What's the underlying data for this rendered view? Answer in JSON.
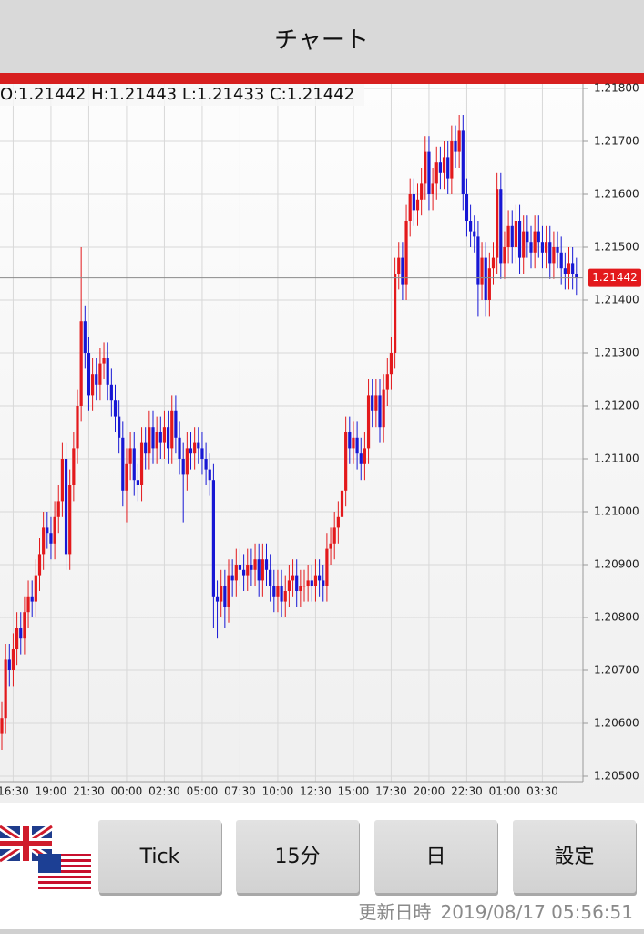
{
  "header": {
    "title": "チャート"
  },
  "buttons": [
    "Tick",
    "15分",
    "日",
    "設定"
  ],
  "footer": {
    "label": "更新日時",
    "timestamp": "2019/08/17 05:56:51"
  },
  "chart_data": {
    "type": "candlestick",
    "info": "O:1.21442 H:1.21443 L:1.21433 C:1.21442",
    "up_color": "#e3191c",
    "down_color": "#1717d4",
    "grid": true,
    "last_price": {
      "value": 1.21442,
      "label": "1.21442"
    },
    "ylim": [
      1.205,
      1.218
    ],
    "yticks": [
      {
        "value": 1.218,
        "label": "1.21800"
      },
      {
        "value": 1.217,
        "label": "1.21700"
      },
      {
        "value": 1.216,
        "label": "1.21600"
      },
      {
        "value": 1.215,
        "label": "1.21500"
      },
      {
        "value": 1.214,
        "label": "1.21400"
      },
      {
        "value": 1.213,
        "label": "1.21300"
      },
      {
        "value": 1.212,
        "label": "1.21200"
      },
      {
        "value": 1.211,
        "label": "1.21100"
      },
      {
        "value": 1.21,
        "label": "1.21000"
      },
      {
        "value": 1.209,
        "label": "1.20900"
      },
      {
        "value": 1.208,
        "label": "1.20800"
      },
      {
        "value": 1.207,
        "label": "1.20700"
      },
      {
        "value": 1.206,
        "label": "1.20600"
      },
      {
        "value": 1.205,
        "label": "1.20500"
      }
    ],
    "xticks": [
      {
        "value": 3,
        "label": "16:30"
      },
      {
        "value": 13,
        "label": "19:00"
      },
      {
        "value": 23,
        "label": "21:30"
      },
      {
        "value": 33,
        "label": "00:00"
      },
      {
        "value": 43,
        "label": "02:30"
      },
      {
        "value": 53,
        "label": "05:00"
      },
      {
        "value": 63,
        "label": "07:30"
      },
      {
        "value": 73,
        "label": "10:00"
      },
      {
        "value": 83,
        "label": "12:30"
      },
      {
        "value": 93,
        "label": "15:00"
      },
      {
        "value": 103,
        "label": "17:30"
      },
      {
        "value": 113,
        "label": "20:00"
      },
      {
        "value": 123,
        "label": "22:30"
      },
      {
        "value": 133,
        "label": "01:00"
      },
      {
        "value": 143,
        "label": "03:30"
      }
    ],
    "open": [
      1.2058,
      1.2061,
      1.2072,
      1.207,
      1.2074,
      1.2078,
      1.2076,
      1.2081,
      1.2084,
      1.2083,
      1.2088,
      1.2092,
      1.2097,
      1.2096,
      1.2094,
      1.2099,
      1.2102,
      1.211,
      1.2092,
      1.2105,
      1.2112,
      1.212,
      1.2136,
      1.213,
      1.2122,
      1.2126,
      1.2124,
      1.2128,
      1.2129,
      1.2124,
      1.2121,
      1.2118,
      1.2114,
      1.2104,
      1.2109,
      1.2112,
      1.2106,
      1.2105,
      1.2113,
      1.2111,
      1.2116,
      1.2112,
      1.2115,
      1.2113,
      1.2116,
      1.2112,
      1.2119,
      1.2114,
      1.211,
      1.2107,
      1.2112,
      1.2111,
      1.2113,
      1.2112,
      1.211,
      1.2108,
      1.2106,
      1.2084,
      1.2083,
      1.2086,
      1.2082,
      1.2088,
      1.2087,
      1.209,
      1.2089,
      1.2088,
      1.209,
      1.2089,
      1.2091,
      1.2087,
      1.2091,
      1.2089,
      1.2086,
      1.2084,
      1.2086,
      1.2083,
      1.2085,
      1.2087,
      1.2088,
      1.2085,
      1.2086,
      1.2086,
      1.2087,
      1.2086,
      1.2088,
      1.2087,
      1.2086,
      1.2093,
      1.2094,
      1.2097,
      1.2099,
      1.2104,
      1.2115,
      1.2112,
      1.2114,
      1.2111,
      1.2109,
      1.2112,
      1.2122,
      1.2119,
      1.2122,
      1.2116,
      1.2123,
      1.2126,
      1.213,
      1.2145,
      1.2148,
      1.2143,
      1.2155,
      1.216,
      1.2157,
      1.2159,
      1.2162,
      1.2168,
      1.216,
      1.2162,
      1.2166,
      1.2164,
      1.2167,
      1.2163,
      1.217,
      1.2168,
      1.2172,
      1.216,
      1.2155,
      1.2153,
      1.2152,
      1.2143,
      1.2148,
      1.214,
      1.2146,
      1.2148,
      1.2161,
      1.2147,
      1.215,
      1.2154,
      1.215,
      1.2155,
      1.2148,
      1.2153,
      1.2151,
      1.2149,
      1.2153,
      1.2151,
      1.2149,
      1.2151,
      1.2147,
      1.215,
      1.2149,
      1.2146,
      1.2145,
      1.2147,
      1.2145
    ],
    "high": [
      1.2064,
      1.2075,
      1.2075,
      1.2077,
      1.2081,
      1.2081,
      1.2084,
      1.2087,
      1.2087,
      1.2091,
      1.2095,
      1.21,
      1.21,
      1.2099,
      1.2102,
      1.2105,
      1.2113,
      1.2113,
      1.2108,
      1.2115,
      1.2123,
      1.215,
      1.2139,
      1.2133,
      1.2129,
      1.2129,
      1.2131,
      1.2132,
      1.2132,
      1.2127,
      1.2124,
      1.2121,
      1.2117,
      1.2112,
      1.2115,
      1.2115,
      1.2109,
      1.2116,
      1.2116,
      1.2119,
      1.2119,
      1.2118,
      1.2118,
      1.2119,
      1.2119,
      1.2122,
      1.2122,
      1.2117,
      1.2113,
      1.2115,
      1.2115,
      1.2116,
      1.2116,
      1.2115,
      1.2113,
      1.2111,
      1.2109,
      1.2087,
      1.2089,
      1.2089,
      1.2091,
      1.2091,
      1.2093,
      1.2093,
      1.2092,
      1.2093,
      1.2093,
      1.2094,
      1.2094,
      1.2094,
      1.2094,
      1.2092,
      1.2089,
      1.2089,
      1.2089,
      1.2088,
      1.209,
      1.2091,
      1.2091,
      1.2089,
      1.2089,
      1.209,
      1.209,
      1.2091,
      1.2091,
      1.209,
      1.2096,
      1.2097,
      1.21,
      1.2102,
      1.2107,
      1.2118,
      1.2118,
      1.2117,
      1.2117,
      1.2114,
      1.2115,
      1.2125,
      1.2125,
      1.2125,
      1.2125,
      1.2126,
      1.2129,
      1.2133,
      1.2148,
      1.2151,
      1.2151,
      1.2158,
      1.2163,
      1.2163,
      1.2162,
      1.2165,
      1.2171,
      1.2171,
      1.2165,
      1.2169,
      1.2169,
      1.217,
      1.217,
      1.2173,
      1.2173,
      1.2175,
      1.2175,
      1.2163,
      1.2158,
      1.2156,
      1.2155,
      1.2151,
      1.2151,
      1.2149,
      1.2151,
      1.2164,
      1.2164,
      1.2153,
      1.2157,
      1.2157,
      1.2158,
      1.2158,
      1.2156,
      1.2156,
      1.2154,
      1.2156,
      1.2156,
      1.2154,
      1.2154,
      1.2154,
      1.2153,
      1.2153,
      1.2152,
      1.2149,
      1.215,
      1.215,
      1.2148
    ],
    "low": [
      1.2055,
      1.2058,
      1.2067,
      1.2067,
      1.2071,
      1.2073,
      1.2073,
      1.2078,
      1.208,
      1.208,
      1.2085,
      1.2089,
      1.2093,
      1.2091,
      1.2091,
      1.2096,
      1.2099,
      1.2089,
      1.2089,
      1.2102,
      1.2109,
      1.2117,
      1.2127,
      1.2119,
      1.2119,
      1.2121,
      1.2121,
      1.2125,
      1.2121,
      1.2118,
      1.2115,
      1.2111,
      1.2101,
      1.2098,
      1.2106,
      1.2103,
      1.2102,
      1.2102,
      1.2108,
      1.2108,
      1.2109,
      1.2109,
      1.211,
      1.211,
      1.2109,
      1.2109,
      1.2111,
      1.2107,
      1.2098,
      1.2104,
      1.2108,
      1.2108,
      1.2109,
      1.2107,
      1.2105,
      1.2103,
      1.2078,
      1.2076,
      1.208,
      1.2078,
      1.2079,
      1.2084,
      1.2084,
      1.2086,
      1.2085,
      1.2085,
      1.2086,
      1.2086,
      1.2084,
      1.2084,
      1.2086,
      1.2083,
      1.2081,
      1.2081,
      1.208,
      1.208,
      1.2082,
      1.2084,
      1.2082,
      1.2082,
      1.2083,
      1.2083,
      1.2083,
      1.2083,
      1.2084,
      1.2083,
      1.2083,
      1.209,
      1.2091,
      1.2094,
      1.2096,
      1.2101,
      1.2109,
      1.2109,
      1.2108,
      1.2106,
      1.2106,
      1.2109,
      1.2116,
      1.2116,
      1.2113,
      1.2113,
      1.212,
      1.2123,
      1.2127,
      1.2142,
      1.214,
      1.214,
      1.2152,
      1.2154,
      1.2154,
      1.2156,
      1.2159,
      1.2157,
      1.2157,
      1.2159,
      1.2161,
      1.2161,
      1.216,
      1.216,
      1.2165,
      1.2165,
      1.2157,
      1.2152,
      1.215,
      1.2149,
      1.2137,
      1.214,
      1.2137,
      1.2137,
      1.2143,
      1.2145,
      1.2144,
      1.2144,
      1.2147,
      1.2147,
      1.2147,
      1.2145,
      1.2145,
      1.2148,
      1.2146,
      1.2146,
      1.2148,
      1.2146,
      1.2146,
      1.2144,
      1.2144,
      1.2146,
      1.2143,
      1.2142,
      1.2142,
      1.2142,
      1.2141
    ],
    "close": [
      1.2061,
      1.2072,
      1.207,
      1.2074,
      1.2078,
      1.2076,
      1.2081,
      1.2084,
      1.2083,
      1.2088,
      1.2092,
      1.2097,
      1.2096,
      1.2094,
      1.2099,
      1.2102,
      1.211,
      1.2092,
      1.2105,
      1.2112,
      1.212,
      1.2136,
      1.213,
      1.2122,
      1.2126,
      1.2124,
      1.2128,
      1.2129,
      1.2124,
      1.2121,
      1.2118,
      1.2114,
      1.2104,
      1.2109,
      1.2112,
      1.2106,
      1.2105,
      1.2113,
      1.2111,
      1.2116,
      1.2112,
      1.2115,
      1.2113,
      1.2116,
      1.2112,
      1.2119,
      1.2114,
      1.211,
      1.2107,
      1.2112,
      1.2111,
      1.2113,
      1.2112,
      1.211,
      1.2108,
      1.2106,
      1.2084,
      1.2083,
      1.2086,
      1.2082,
      1.2088,
      1.2087,
      1.209,
      1.2089,
      1.2088,
      1.209,
      1.2089,
      1.2091,
      1.2087,
      1.2091,
      1.2089,
      1.2086,
      1.2084,
      1.2086,
      1.2083,
      1.2085,
      1.2087,
      1.2088,
      1.2085,
      1.2086,
      1.2086,
      1.2087,
      1.2086,
      1.2088,
      1.2087,
      1.2086,
      1.2093,
      1.2094,
      1.2097,
      1.2099,
      1.2104,
      1.2115,
      1.2112,
      1.2114,
      1.2111,
      1.2109,
      1.2112,
      1.2122,
      1.2119,
      1.2122,
      1.2116,
      1.2123,
      1.2126,
      1.213,
      1.2145,
      1.2148,
      1.2143,
      1.2155,
      1.216,
      1.2157,
      1.2159,
      1.2162,
      1.2168,
      1.216,
      1.2162,
      1.2166,
      1.2164,
      1.2167,
      1.2163,
      1.217,
      1.2168,
      1.2172,
      1.216,
      1.2155,
      1.2153,
      1.2152,
      1.2143,
      1.2148,
      1.214,
      1.2146,
      1.2148,
      1.2161,
      1.2147,
      1.215,
      1.2154,
      1.215,
      1.2155,
      1.2148,
      1.2153,
      1.2151,
      1.2149,
      1.2153,
      1.2151,
      1.2149,
      1.2151,
      1.2147,
      1.215,
      1.2149,
      1.2146,
      1.2145,
      1.2147,
      1.2145,
      1.21442
    ]
  }
}
